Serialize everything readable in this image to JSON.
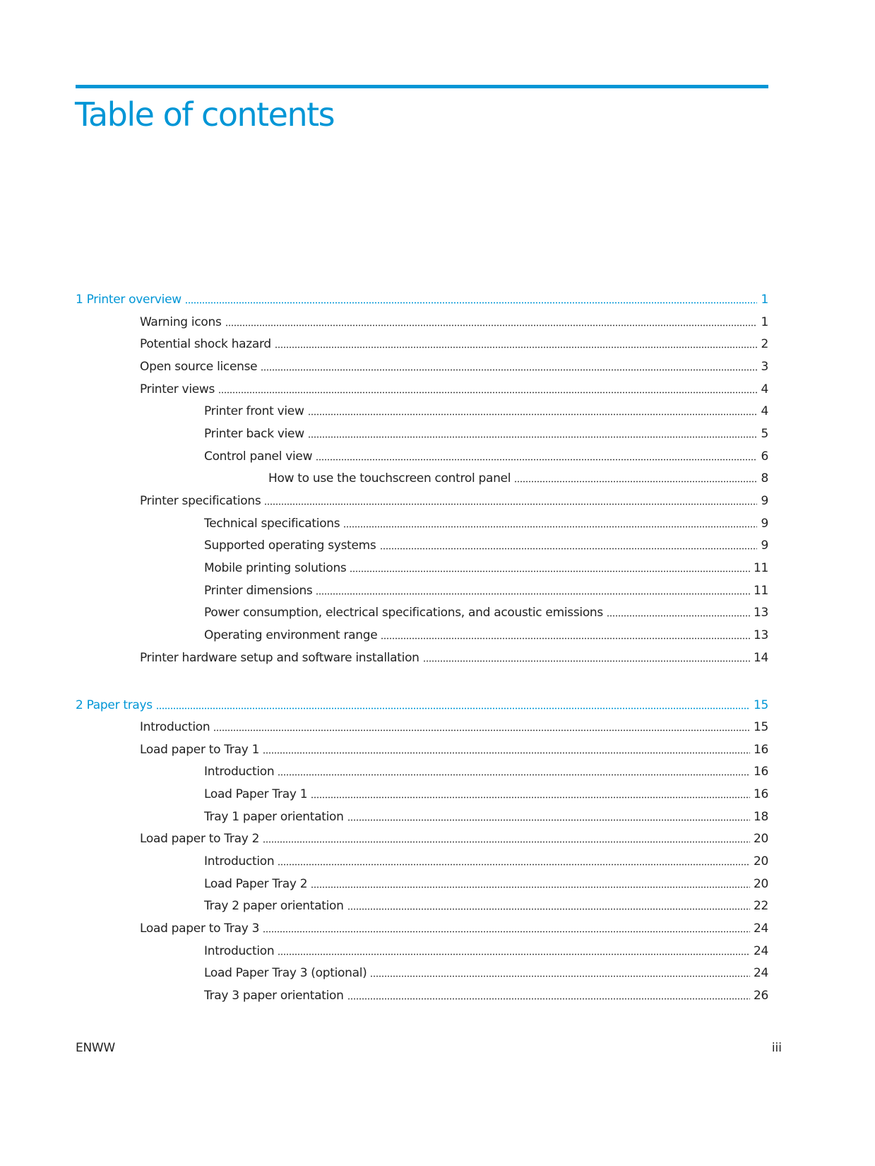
{
  "page": {
    "title": "Table of contents",
    "accent_color": "#0096D6",
    "footer_left": "ENWW",
    "footer_right": "iii"
  },
  "chapters": [
    {
      "label": "1  Printer overview",
      "page": "1",
      "entries": [
        {
          "label": "Warning icons",
          "page": "1",
          "level": 1
        },
        {
          "label": "Potential shock hazard",
          "page": "2",
          "level": 1
        },
        {
          "label": "Open source license",
          "page": "3",
          "level": 1
        },
        {
          "label": "Printer views",
          "page": "4",
          "level": 1
        },
        {
          "label": "Printer front view",
          "page": "4",
          "level": 2
        },
        {
          "label": "Printer back view",
          "page": "5",
          "level": 2
        },
        {
          "label": "Control panel view",
          "page": "6",
          "level": 2
        },
        {
          "label": "How to use the touchscreen control panel",
          "page": "8",
          "level": 3
        },
        {
          "label": "Printer specifications",
          "page": "9",
          "level": 1
        },
        {
          "label": "Technical specifications",
          "page": "9",
          "level": 2
        },
        {
          "label": "Supported operating systems",
          "page": "9",
          "level": 2
        },
        {
          "label": "Mobile printing solutions",
          "page": "11",
          "level": 2
        },
        {
          "label": "Printer dimensions",
          "page": "11",
          "level": 2
        },
        {
          "label": "Power consumption, electrical specifications, and acoustic emissions",
          "page": "13",
          "level": 2
        },
        {
          "label": "Operating environment range",
          "page": "13",
          "level": 2
        },
        {
          "label": "Printer hardware setup and software installation",
          "page": "14",
          "level": 1
        }
      ]
    },
    {
      "label": "2  Paper trays",
      "page": "15",
      "entries": [
        {
          "label": "Introduction",
          "page": "15",
          "level": 1
        },
        {
          "label": "Load paper to Tray 1",
          "page": "16",
          "level": 1
        },
        {
          "label": "Introduction",
          "page": "16",
          "level": 2
        },
        {
          "label": "Load Paper Tray 1",
          "page": "16",
          "level": 2
        },
        {
          "label": "Tray 1 paper orientation",
          "page": "18",
          "level": 2
        },
        {
          "label": "Load paper to Tray 2",
          "page": "20",
          "level": 1
        },
        {
          "label": "Introduction",
          "page": "20",
          "level": 2
        },
        {
          "label": "Load Paper Tray 2",
          "page": "20",
          "level": 2
        },
        {
          "label": "Tray 2 paper orientation",
          "page": "22",
          "level": 2
        },
        {
          "label": "Load paper to Tray 3",
          "page": "24",
          "level": 1
        },
        {
          "label": "Introduction",
          "page": "24",
          "level": 2
        },
        {
          "label": "Load Paper Tray 3 (optional)",
          "page": "24",
          "level": 2
        },
        {
          "label": "Tray 3 paper orientation",
          "page": "26",
          "level": 2
        }
      ]
    }
  ]
}
